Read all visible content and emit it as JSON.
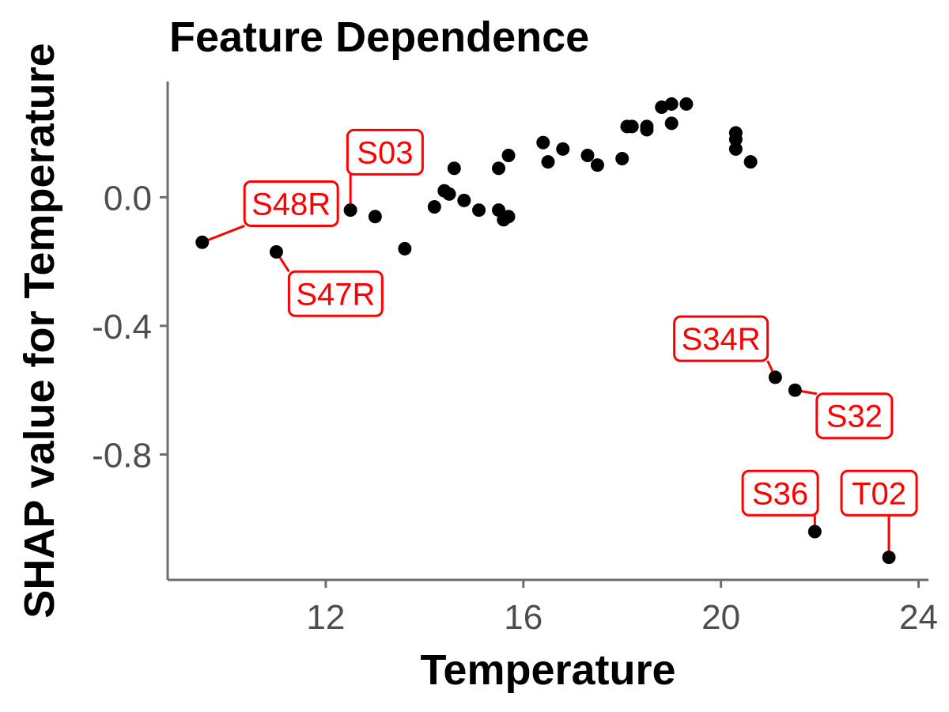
{
  "chart_data": {
    "type": "scatter",
    "title": "Feature Dependence",
    "xlabel": "Temperature",
    "ylabel": "SHAP value for Temperature",
    "xlim": [
      8.8,
      24.2
    ],
    "ylim": [
      -1.19,
      0.36
    ],
    "xticks": [
      12,
      16,
      20,
      24
    ],
    "yticks": [
      0.0,
      -0.4,
      -0.8
    ],
    "ytick_labels": [
      "0.0",
      "-0.4",
      "-0.8"
    ],
    "grid": false,
    "point_color": "#000000",
    "label_color": "#ff0000",
    "points": [
      {
        "x": 9.5,
        "y": -0.14
      },
      {
        "x": 11.0,
        "y": -0.17
      },
      {
        "x": 12.5,
        "y": -0.04
      },
      {
        "x": 13.0,
        "y": -0.06
      },
      {
        "x": 13.6,
        "y": -0.16
      },
      {
        "x": 14.2,
        "y": -0.03
      },
      {
        "x": 14.4,
        "y": 0.02
      },
      {
        "x": 14.5,
        "y": 0.01
      },
      {
        "x": 14.6,
        "y": 0.09
      },
      {
        "x": 14.8,
        "y": -0.01
      },
      {
        "x": 15.1,
        "y": -0.04
      },
      {
        "x": 15.5,
        "y": -0.04
      },
      {
        "x": 15.5,
        "y": 0.09
      },
      {
        "x": 15.6,
        "y": -0.07
      },
      {
        "x": 15.7,
        "y": -0.06
      },
      {
        "x": 15.7,
        "y": 0.13
      },
      {
        "x": 16.4,
        "y": 0.17
      },
      {
        "x": 16.5,
        "y": 0.11
      },
      {
        "x": 16.8,
        "y": 0.15
      },
      {
        "x": 17.3,
        "y": 0.13
      },
      {
        "x": 17.5,
        "y": 0.1
      },
      {
        "x": 18.0,
        "y": 0.12
      },
      {
        "x": 18.1,
        "y": 0.22
      },
      {
        "x": 18.2,
        "y": 0.22
      },
      {
        "x": 18.5,
        "y": 0.21
      },
      {
        "x": 18.5,
        "y": 0.22
      },
      {
        "x": 18.8,
        "y": 0.28
      },
      {
        "x": 19.0,
        "y": 0.29
      },
      {
        "x": 19.0,
        "y": 0.23
      },
      {
        "x": 19.3,
        "y": 0.29
      },
      {
        "x": 20.3,
        "y": 0.2
      },
      {
        "x": 20.3,
        "y": 0.18
      },
      {
        "x": 20.3,
        "y": 0.15
      },
      {
        "x": 20.6,
        "y": 0.11
      },
      {
        "x": 21.1,
        "y": -0.56
      },
      {
        "x": 21.5,
        "y": -0.6
      },
      {
        "x": 21.9,
        "y": -1.04
      },
      {
        "x": 23.4,
        "y": -1.12
      }
    ],
    "labels": [
      {
        "text": "S48R",
        "x": 9.5,
        "y": -0.14,
        "box_x": 11.3,
        "box_y": -0.02
      },
      {
        "text": "S47R",
        "x": 11.0,
        "y": -0.17,
        "box_x": 12.2,
        "box_y": -0.3
      },
      {
        "text": "S03",
        "x": 12.5,
        "y": -0.04,
        "box_x": 13.2,
        "box_y": 0.14
      },
      {
        "text": "S34R",
        "x": 21.1,
        "y": -0.56,
        "box_x": 20.0,
        "box_y": -0.44
      },
      {
        "text": "S32",
        "x": 21.5,
        "y": -0.6,
        "box_x": 22.7,
        "box_y": -0.68
      },
      {
        "text": "S36",
        "x": 21.9,
        "y": -1.04,
        "box_x": 21.2,
        "box_y": -0.92
      },
      {
        "text": "T02",
        "x": 23.4,
        "y": -1.12,
        "box_x": 23.2,
        "box_y": -0.92
      }
    ]
  }
}
